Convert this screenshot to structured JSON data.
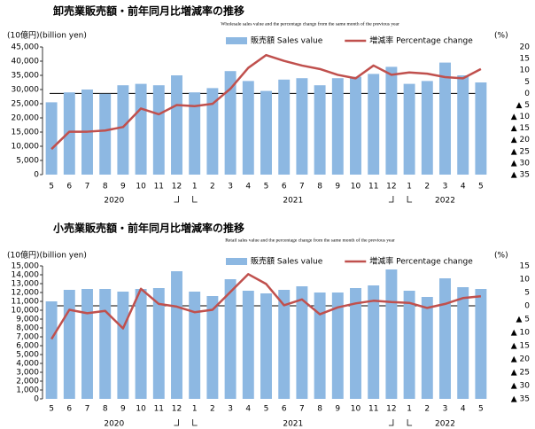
{
  "chart_data": [
    {
      "type": "bar_line",
      "title": "卸売業販売額・前年同月比増減率の推移",
      "subtitle": "Wholesale sales value and the percentage change from the same month of the previous year",
      "y_label": "(10億円)(billion yen)",
      "y2_label": "(%)",
      "categories": [
        "5",
        "6",
        "7",
        "8",
        "9",
        "10",
        "11",
        "12",
        "1",
        "2",
        "3",
        "4",
        "5",
        "6",
        "7",
        "8",
        "9",
        "10",
        "11",
        "12",
        "1",
        "2",
        "3",
        "4",
        "5"
      ],
      "year_labels": [
        "2020",
        "2021",
        "2022"
      ],
      "series": [
        {
          "name": "販売額 Sales value",
          "type": "bar",
          "color": "#8db8e2",
          "values": [
            25500,
            29000,
            30000,
            28500,
            31500,
            32000,
            31500,
            35000,
            29000,
            30500,
            36500,
            33000,
            29500,
            33500,
            34000,
            31500,
            34000,
            34500,
            35500,
            38000,
            32000,
            33000,
            39500,
            35000,
            32500
          ]
        },
        {
          "name": "増減率 Percentage change",
          "type": "line",
          "axis": "y2",
          "color": "#c0504d",
          "values": [
            -24,
            -16.5,
            -16.5,
            -16,
            -14.5,
            -6.5,
            -9,
            -5,
            -5.5,
            -4.5,
            2,
            11,
            16.5,
            14,
            12,
            10.5,
            8,
            6.5,
            12,
            8,
            9,
            8.5,
            7,
            6.5,
            10.5
          ]
        }
      ],
      "ylim": [
        0,
        45000
      ],
      "yticks": [
        0,
        {
          "value": 5000,
          "label": "5,000"
        },
        {
          "value": 10000,
          "label": "10,000"
        },
        {
          "value": 15000,
          "label": "15,000"
        },
        {
          "value": 20000,
          "label": "20,000"
        },
        {
          "value": 25000,
          "label": "25,000"
        },
        {
          "value": 30000,
          "label": "30,000"
        },
        {
          "value": 35000,
          "label": "35,000"
        },
        {
          "value": 40000,
          "label": "40,000"
        },
        {
          "value": 45000,
          "label": "45,000"
        }
      ],
      "y2lim": [
        -35,
        20
      ],
      "y2ticks": [
        20,
        15,
        10,
        5,
        0,
        {
          "value": -5,
          "label": "▲ 5"
        },
        {
          "value": -10,
          "label": "▲ 10"
        },
        {
          "value": -15,
          "label": "▲ 15"
        },
        {
          "value": -20,
          "label": "▲ 20"
        },
        {
          "value": -25,
          "label": "▲ 25"
        },
        {
          "value": -30,
          "label": "▲ 30"
        },
        {
          "value": -35,
          "label": "▲ 35"
        }
      ],
      "zero_line": true
    },
    {
      "type": "bar_line",
      "title": "小売業販売額・前年同月比増減率の推移",
      "subtitle": "Retail sales value and the percentage change from the same month of the previous year",
      "y_label": "(10億円)(billion yen)",
      "y2_label": "(%)",
      "categories": [
        "5",
        "6",
        "7",
        "8",
        "9",
        "10",
        "11",
        "12",
        "1",
        "2",
        "3",
        "4",
        "5",
        "6",
        "7",
        "8",
        "9",
        "10",
        "11",
        "12",
        "1",
        "2",
        "3",
        "4",
        "5"
      ],
      "year_labels": [
        "2020",
        "2021",
        "2022"
      ],
      "series": [
        {
          "name": "販売額 Sales value",
          "type": "bar",
          "color": "#8db8e2",
          "values": [
            11000,
            12300,
            12400,
            12400,
            12100,
            12400,
            12500,
            14400,
            12100,
            11600,
            13500,
            12200,
            11900,
            12300,
            12700,
            12000,
            12000,
            12500,
            12800,
            14600,
            12200,
            11500,
            13600,
            12600,
            12400
          ]
        },
        {
          "name": "増減率 Percentage change",
          "type": "line",
          "axis": "y2",
          "color": "#c0504d",
          "values": [
            -12.5,
            -1.5,
            -2.8,
            -1.9,
            -8.5,
            6.4,
            0.7,
            -0.3,
            -2.4,
            -1.5,
            5.2,
            11.9,
            8.2,
            0.2,
            2.4,
            -3.2,
            -0.6,
            0.9,
            1.9,
            1.4,
            1.1,
            -0.8,
            0.7,
            2.9,
            3.6
          ]
        }
      ],
      "ylim": [
        0,
        15000
      ],
      "yticks": [
        0,
        {
          "value": 1000,
          "label": "1,000"
        },
        {
          "value": 2000,
          "label": "2,000"
        },
        {
          "value": 3000,
          "label": "3,000"
        },
        {
          "value": 4000,
          "label": "4,000"
        },
        {
          "value": 5000,
          "label": "5,000"
        },
        {
          "value": 6000,
          "label": "6,000"
        },
        {
          "value": 7000,
          "label": "7,000"
        },
        {
          "value": 8000,
          "label": "8,000"
        },
        {
          "value": 9000,
          "label": "9,000"
        },
        {
          "value": 10000,
          "label": "10,000"
        },
        {
          "value": 11000,
          "label": "11,000"
        },
        {
          "value": 12000,
          "label": "12,000"
        },
        {
          "value": 13000,
          "label": "13,000"
        },
        {
          "value": 14000,
          "label": "14,000"
        },
        {
          "value": 15000,
          "label": "15,000"
        }
      ],
      "y2lim": [
        -35,
        15
      ],
      "y2ticks": [
        15,
        10,
        5,
        0,
        {
          "value": -5,
          "label": "▲ 5"
        },
        {
          "value": -10,
          "label": "▲ 10"
        },
        {
          "value": -15,
          "label": "▲ 15"
        },
        {
          "value": -20,
          "label": "▲ 20"
        },
        {
          "value": -25,
          "label": "▲ 25"
        },
        {
          "value": -30,
          "label": "▲ 30"
        },
        {
          "value": -35,
          "label": "▲ 35"
        }
      ],
      "zero_line": true
    }
  ]
}
